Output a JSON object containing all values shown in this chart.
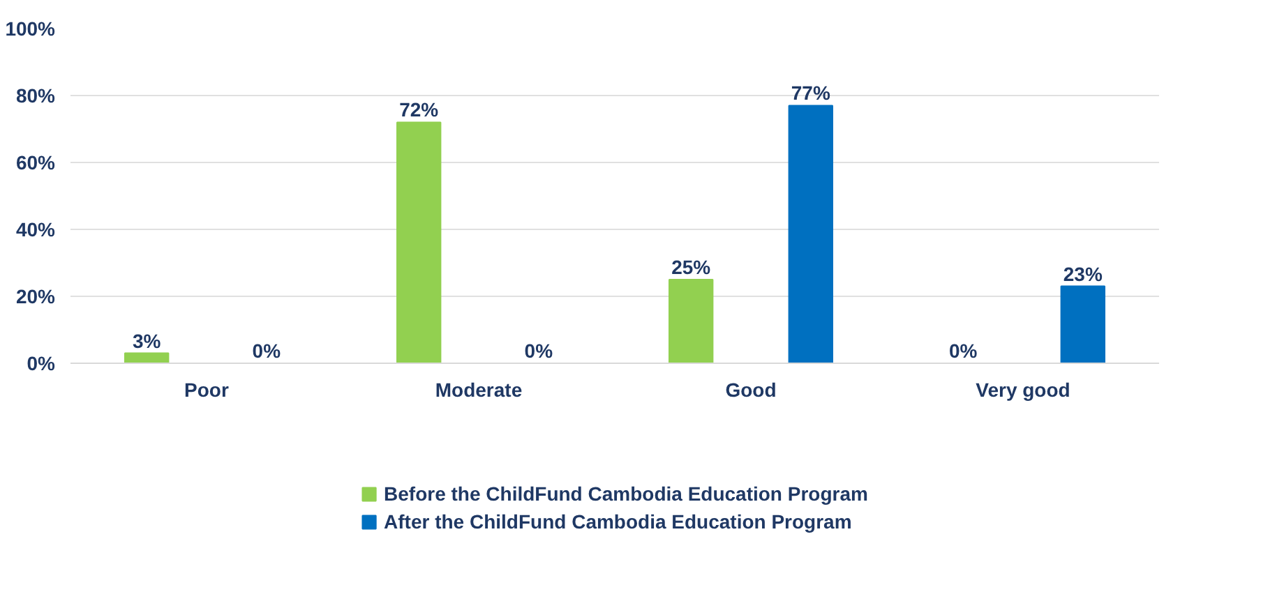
{
  "chart_data": {
    "type": "bar",
    "categories": [
      "Poor",
      "Moderate",
      "Good",
      "Very good"
    ],
    "series": [
      {
        "name": "Before the ChildFund Cambodia Education Program",
        "color": "#92d050",
        "values": [
          3,
          72,
          25,
          0
        ],
        "value_labels": [
          "3%",
          "72%",
          "25%",
          "0%"
        ]
      },
      {
        "name": "After the ChildFund Cambodia Education Program",
        "color": "#0070c0",
        "values": [
          0,
          0,
          77,
          23
        ],
        "value_labels": [
          "0%",
          "0%",
          "77%",
          "23%"
        ]
      }
    ],
    "ylim": [
      0,
      100
    ],
    "yticks": [
      {
        "value": 0,
        "label": "0%"
      },
      {
        "value": 20,
        "label": "20%"
      },
      {
        "value": 40,
        "label": "40%"
      },
      {
        "value": 60,
        "label": "60%"
      },
      {
        "value": 80,
        "label": "80%"
      },
      {
        "value": 100,
        "label": "100%"
      }
    ],
    "grid": "y",
    "legend": "bottom"
  }
}
